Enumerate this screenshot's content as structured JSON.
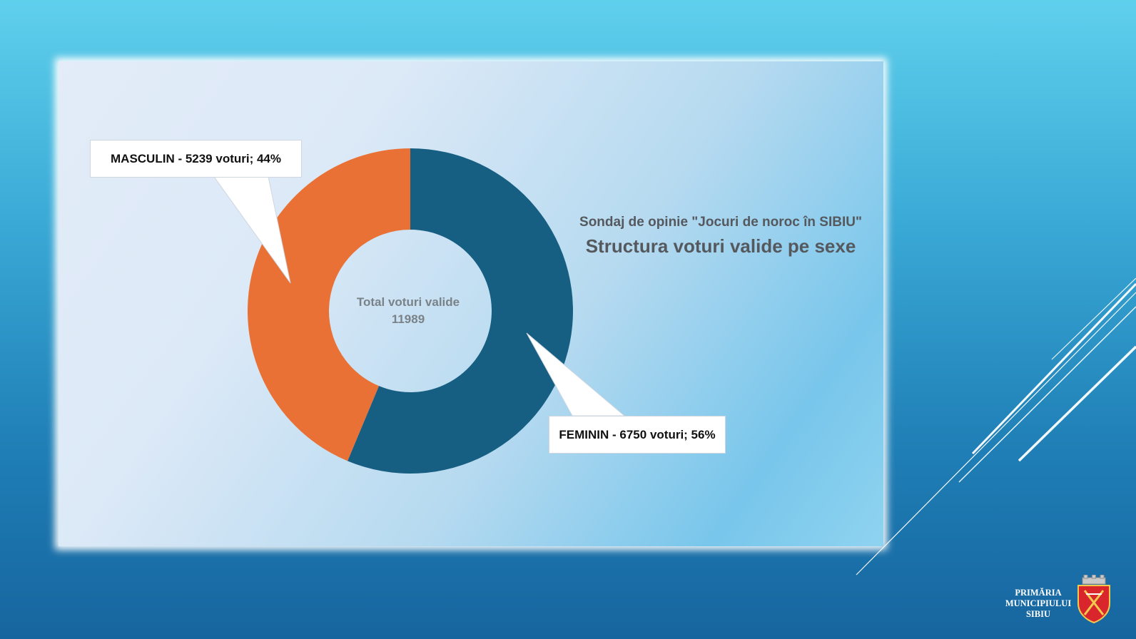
{
  "chart_data": {
    "type": "donut",
    "title": "Sondaj de opinie \"Jocuri de noroc în SIBIU\"",
    "subtitle": "Structura voturi valide pe sexe",
    "center_label": "Total voturi valide",
    "center_value": "11989",
    "total": 11989,
    "slices": [
      {
        "category": "FEMININ",
        "value": 6750,
        "percent": 56,
        "color": "#175f82",
        "label": "FEMININ -  6750 voturi; 56%"
      },
      {
        "category": "MASCULIN",
        "value": 5239,
        "percent": 44,
        "color": "#e97135",
        "label": "MASCULIN - 5239 voturi; 44%"
      }
    ]
  },
  "branding": {
    "logo_lines": [
      "PRIMĂRIA",
      "MUNICIPIULUI",
      "SIBIU"
    ],
    "coat_of_arms_icon": "coat-of-arms-icon"
  },
  "colors": {
    "feminin": "#175f82",
    "masculin": "#e97135",
    "title_text": "#55595e"
  }
}
